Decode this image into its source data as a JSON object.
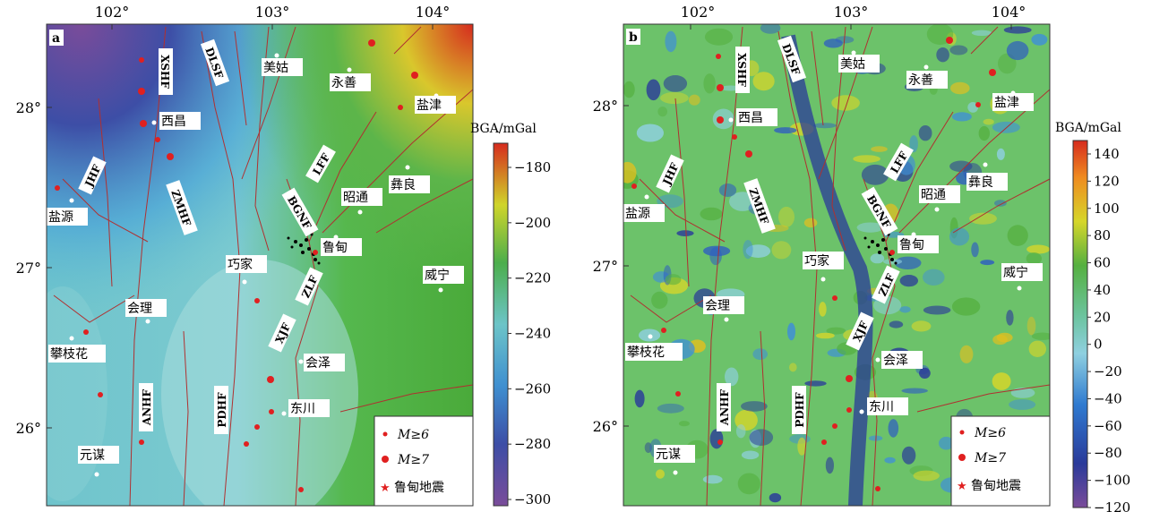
{
  "panels": [
    {
      "label": "a",
      "colorbar": {
        "title": "BGA/mGal",
        "ticks": [
          "-180",
          "-200",
          "-220",
          "-240",
          "-260",
          "-280",
          "-300"
        ]
      }
    },
    {
      "label": "b",
      "colorbar": {
        "title": "BGA/mGal",
        "ticks": [
          "140",
          "120",
          "100",
          "80",
          "60",
          "40",
          "20",
          "0",
          "-20",
          "-40",
          "-60",
          "-80",
          "-100",
          "-120"
        ]
      }
    }
  ],
  "axes": {
    "lon_ticks": [
      "102°",
      "103°",
      "104°"
    ],
    "lat_ticks": [
      "28°",
      "27°",
      "26°"
    ]
  },
  "faults": [
    "XSHF",
    "DLSF",
    "JHF",
    "ZMHF",
    "LFF",
    "BGNF",
    "ZLF",
    "XJF",
    "ANHF",
    "PDHF"
  ],
  "cities": [
    "美姑",
    "永善",
    "盐津",
    "西昌",
    "彝良",
    "昭通",
    "盐源",
    "鲁甸",
    "巧家",
    "威宁",
    "会理",
    "攀枝花",
    "会泽",
    "东川",
    "元谋"
  ],
  "legend": {
    "items": [
      {
        "key": "M≥6",
        "symbol": "small-dot-icon",
        "color": "#e02020"
      },
      {
        "key": "M≥7",
        "symbol": "large-dot-icon",
        "color": "#e02020"
      },
      {
        "key": "鲁甸地震",
        "symbol": "star-icon",
        "color": "#e02020"
      }
    ]
  },
  "colors": {
    "fault": "#b03030",
    "quake": "#e02020",
    "city": "#ffffff",
    "aftershock": "#000000"
  }
}
